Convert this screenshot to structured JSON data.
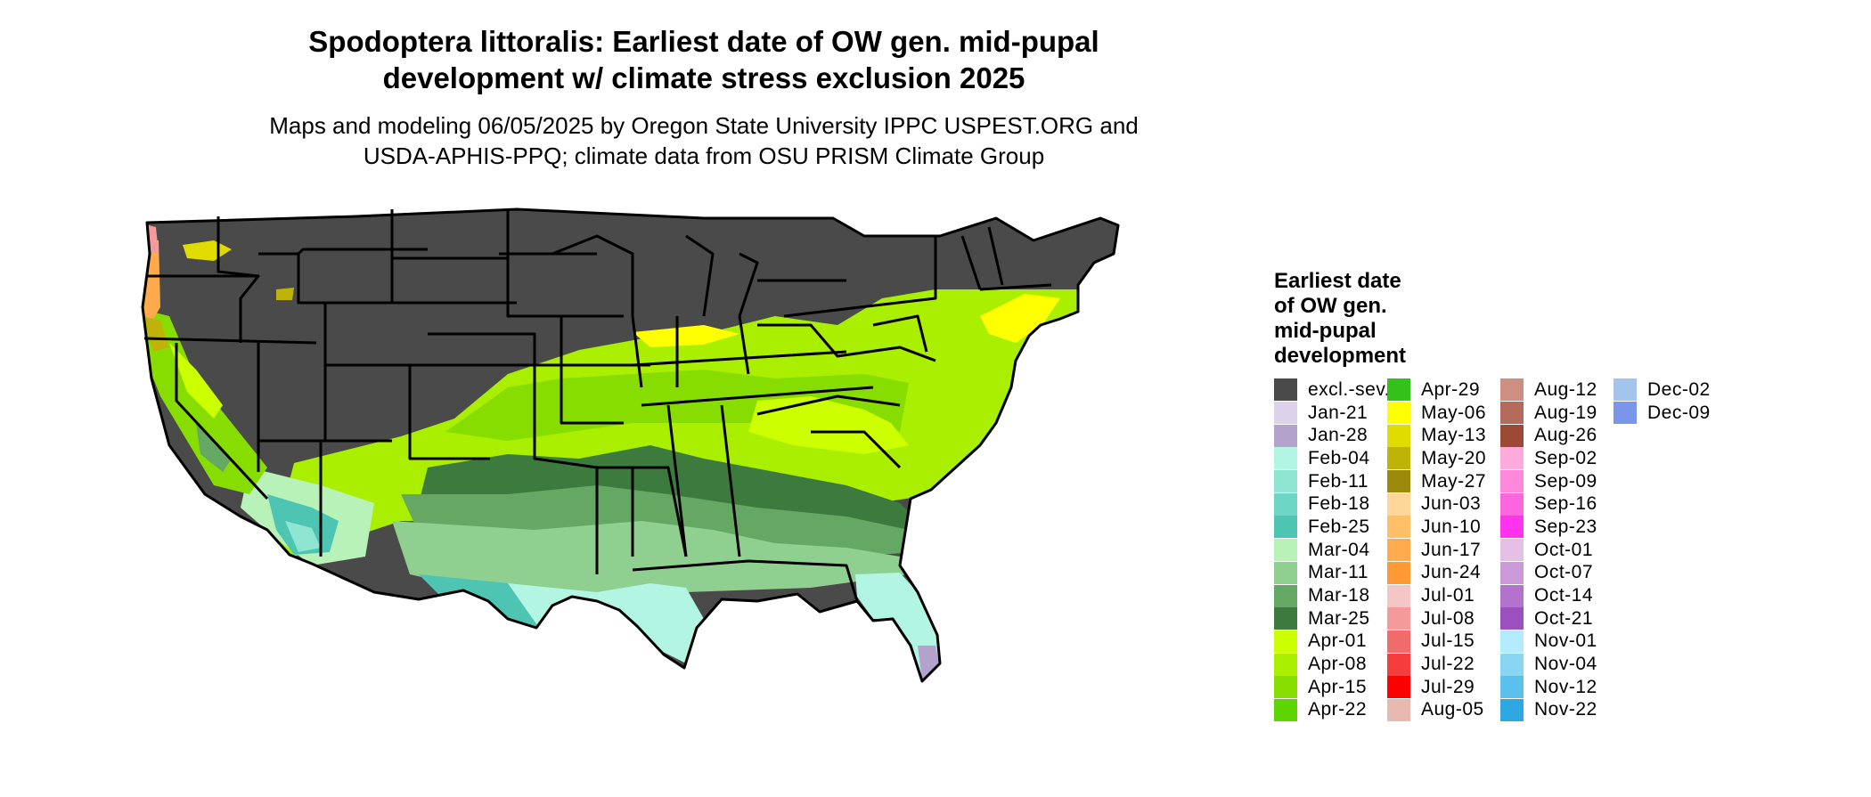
{
  "title_line1": "Spodoptera littoralis: Earliest date of OW gen. mid-pupal",
  "title_line2": "development w/ climate stress exclusion 2025",
  "subtitle_line1": "Maps and modeling 06/05/2025 by Oregon State University IPPC USPEST.ORG and",
  "subtitle_line2": "USDA-APHIS-PPQ; climate data from OSU PRISM Climate Group",
  "legend": {
    "title_lines": [
      "Earliest date",
      "of OW gen.",
      "mid-pupal",
      "development"
    ],
    "items": [
      {
        "label": "excl.-sev.",
        "color": "#4a4a4a"
      },
      {
        "label": "Jan-21",
        "color": "#dcd3ea"
      },
      {
        "label": "Jan-28",
        "color": "#b3a3cc"
      },
      {
        "label": "Feb-04",
        "color": "#b3f5e3"
      },
      {
        "label": "Feb-11",
        "color": "#8ee6d2"
      },
      {
        "label": "Feb-18",
        "color": "#6dd6c4"
      },
      {
        "label": "Feb-25",
        "color": "#4ec4b3"
      },
      {
        "label": "Mar-04",
        "color": "#b8f2b8"
      },
      {
        "label": "Mar-11",
        "color": "#8fcf8f"
      },
      {
        "label": "Mar-18",
        "color": "#64a864"
      },
      {
        "label": "Mar-25",
        "color": "#3d7a3d"
      },
      {
        "label": "Apr-01",
        "color": "#ccff00"
      },
      {
        "label": "Apr-08",
        "color": "#aaee00"
      },
      {
        "label": "Apr-15",
        "color": "#88dd00"
      },
      {
        "label": "Apr-22",
        "color": "#5ed400"
      },
      {
        "label": "Apr-29",
        "color": "#33c21a"
      },
      {
        "label": "May-06",
        "color": "#ffff00"
      },
      {
        "label": "May-13",
        "color": "#e0dc00"
      },
      {
        "label": "May-20",
        "color": "#bfb30a"
      },
      {
        "label": "May-27",
        "color": "#9e8a0a"
      },
      {
        "label": "Jun-03",
        "color": "#ffd699"
      },
      {
        "label": "Jun-10",
        "color": "#ffbf66"
      },
      {
        "label": "Jun-17",
        "color": "#ffaa4d"
      },
      {
        "label": "Jun-24",
        "color": "#ff9933"
      },
      {
        "label": "Jul-01",
        "color": "#f5c6c6"
      },
      {
        "label": "Jul-08",
        "color": "#f59a9a"
      },
      {
        "label": "Jul-15",
        "color": "#f26b6b"
      },
      {
        "label": "Jul-22",
        "color": "#f53d3d"
      },
      {
        "label": "Jul-29",
        "color": "#ff0000"
      },
      {
        "label": "Aug-05",
        "color": "#e8b9b0"
      },
      {
        "label": "Aug-12",
        "color": "#cc8f82"
      },
      {
        "label": "Aug-19",
        "color": "#b56b5c"
      },
      {
        "label": "Aug-26",
        "color": "#9e4936"
      },
      {
        "label": "Sep-02",
        "color": "#ffaadd"
      },
      {
        "label": "Sep-09",
        "color": "#ff88dd"
      },
      {
        "label": "Sep-16",
        "color": "#ff66dd"
      },
      {
        "label": "Sep-23",
        "color": "#ff33ee"
      },
      {
        "label": "Oct-01",
        "color": "#e6bfe6"
      },
      {
        "label": "Oct-07",
        "color": "#cc99d9"
      },
      {
        "label": "Oct-14",
        "color": "#b373cc"
      },
      {
        "label": "Oct-21",
        "color": "#9c4fbf"
      },
      {
        "label": "Nov-01",
        "color": "#b3ecff"
      },
      {
        "label": "Nov-04",
        "color": "#88d6f2"
      },
      {
        "label": "Nov-12",
        "color": "#5cc0ec"
      },
      {
        "label": "Nov-22",
        "color": "#2ea8e0"
      },
      {
        "label": "Dec-02",
        "color": "#a3c4ec"
      },
      {
        "label": "Dec-09",
        "color": "#7a96ea"
      }
    ]
  }
}
